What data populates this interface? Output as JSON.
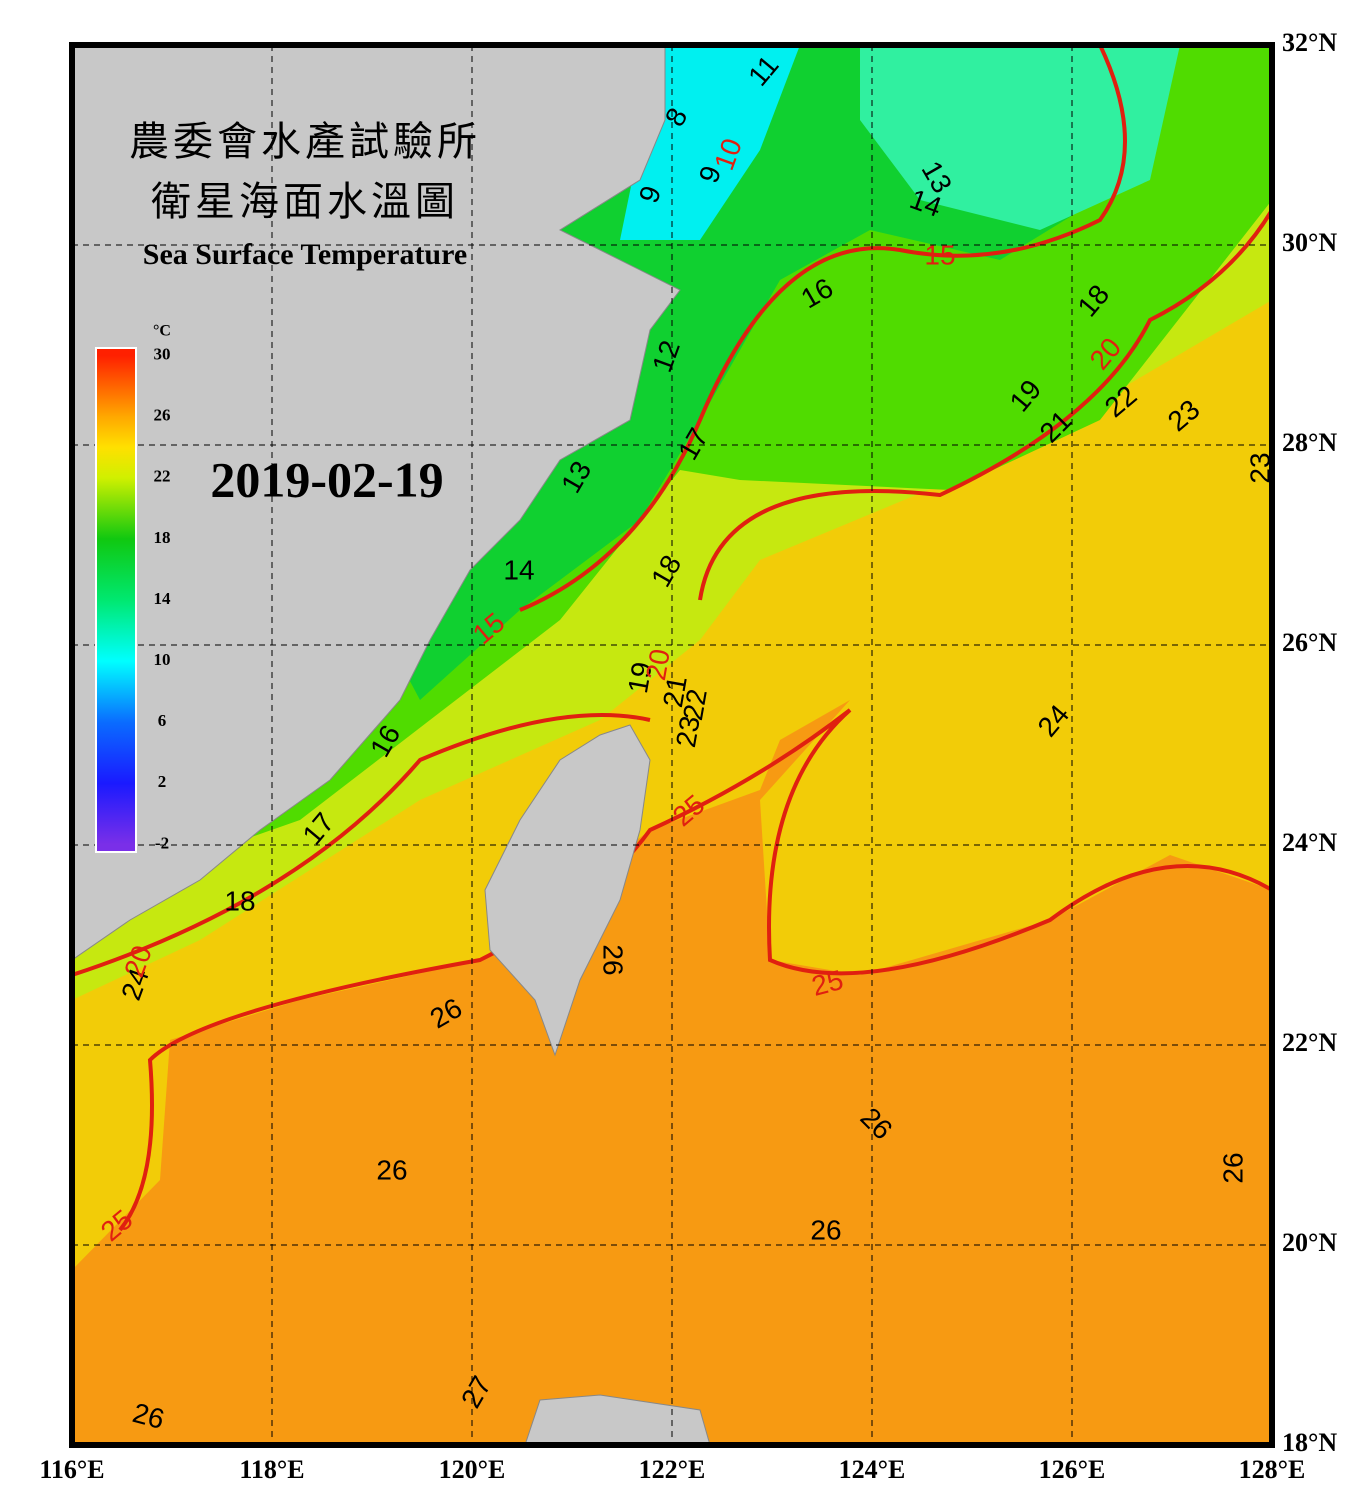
{
  "header": {
    "title_zh": "農委會水產試驗所",
    "subtitle_zh": "衛星海面水溫圖",
    "title_en": "Sea Surface Temperature",
    "date": "2019-02-19"
  },
  "map": {
    "lon_range": [
      116,
      128
    ],
    "lat_range": [
      18,
      32
    ],
    "grid": true,
    "lon_ticks": [
      {
        "value": 116,
        "label": "116°E"
      },
      {
        "value": 118,
        "label": "118°E"
      },
      {
        "value": 120,
        "label": "120°E"
      },
      {
        "value": 122,
        "label": "122°E"
      },
      {
        "value": 124,
        "label": "124°E"
      },
      {
        "value": 126,
        "label": "126°E"
      },
      {
        "value": 128,
        "label": "128°E"
      }
    ],
    "lat_ticks": [
      {
        "value": 32,
        "label": "32°N"
      },
      {
        "value": 30,
        "label": "30°N"
      },
      {
        "value": 28,
        "label": "28°N"
      },
      {
        "value": 26,
        "label": "26°N"
      },
      {
        "value": 24,
        "label": "24°N"
      },
      {
        "value": 22,
        "label": "22°N"
      },
      {
        "value": 20,
        "label": "20°N"
      },
      {
        "value": 18,
        "label": "18°N"
      }
    ]
  },
  "colorbar": {
    "unit": "°C",
    "range": [
      -2.5,
      30.5
    ],
    "ticks": [
      30,
      26,
      22,
      18,
      14,
      10,
      6,
      2,
      -2
    ],
    "colors": [
      {
        "value": -2,
        "color": "#7a2fe8"
      },
      {
        "value": 2,
        "color": "#1a1aff"
      },
      {
        "value": 6,
        "color": "#0a6cff"
      },
      {
        "value": 10,
        "color": "#00ffff"
      },
      {
        "value": 14,
        "color": "#00e870"
      },
      {
        "value": 18,
        "color": "#10c810"
      },
      {
        "value": 22,
        "color": "#d0f000"
      },
      {
        "value": 24,
        "color": "#ffe000"
      },
      {
        "value": 26,
        "color": "#ffa800"
      },
      {
        "value": 30,
        "color": "#ff2000"
      }
    ]
  },
  "contour_labels": {
    "black": [
      11,
      8,
      9,
      9,
      13,
      14,
      16,
      18,
      12,
      19,
      22,
      23,
      21,
      17,
      13,
      23,
      18,
      14,
      19,
      21,
      22,
      23,
      24,
      16,
      17,
      18,
      24,
      26,
      26,
      26,
      26,
      26,
      26,
      27,
      26
    ],
    "red": [
      10,
      15,
      20,
      15,
      20,
      25,
      25,
      25,
      20
    ]
  }
}
